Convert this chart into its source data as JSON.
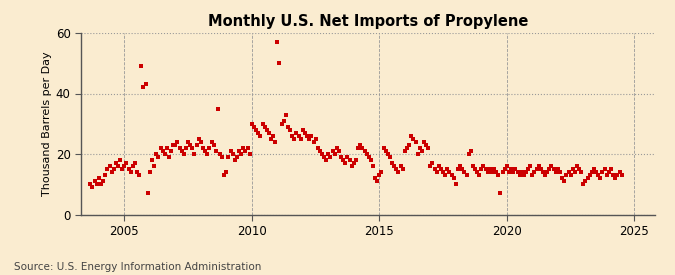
{
  "title": "Monthly U.S. Net Imports of Propylene",
  "ylabel": "Thousand Barrels per Day",
  "source": "Source: U.S. Energy Information Administration",
  "bg_color": "#faecd0",
  "plot_bg_color": "#f5f0e8",
  "dot_color": "#cc0000",
  "ylim": [
    0,
    60
  ],
  "yticks": [
    0,
    20,
    40,
    60
  ],
  "xlim_start": 2003.3,
  "xlim_end": 2025.8,
  "xticks": [
    2005,
    2010,
    2015,
    2020,
    2025
  ],
  "data": [
    [
      2003.67,
      10
    ],
    [
      2003.75,
      9
    ],
    [
      2003.83,
      11
    ],
    [
      2003.92,
      10
    ],
    [
      2004.0,
      12
    ],
    [
      2004.08,
      10
    ],
    [
      2004.17,
      11
    ],
    [
      2004.25,
      13
    ],
    [
      2004.33,
      15
    ],
    [
      2004.42,
      16
    ],
    [
      2004.5,
      14
    ],
    [
      2004.58,
      15
    ],
    [
      2004.67,
      17
    ],
    [
      2004.75,
      16
    ],
    [
      2004.83,
      18
    ],
    [
      2004.92,
      15
    ],
    [
      2005.0,
      16
    ],
    [
      2005.08,
      17
    ],
    [
      2005.17,
      15
    ],
    [
      2005.25,
      14
    ],
    [
      2005.33,
      16
    ],
    [
      2005.42,
      17
    ],
    [
      2005.5,
      14
    ],
    [
      2005.58,
      13
    ],
    [
      2005.67,
      49
    ],
    [
      2005.75,
      42
    ],
    [
      2005.83,
      43
    ],
    [
      2005.92,
      7
    ],
    [
      2006.0,
      14
    ],
    [
      2006.08,
      18
    ],
    [
      2006.17,
      16
    ],
    [
      2006.25,
      20
    ],
    [
      2006.33,
      19
    ],
    [
      2006.42,
      22
    ],
    [
      2006.5,
      21
    ],
    [
      2006.58,
      20
    ],
    [
      2006.67,
      22
    ],
    [
      2006.75,
      19
    ],
    [
      2006.83,
      21
    ],
    [
      2006.92,
      23
    ],
    [
      2007.0,
      23
    ],
    [
      2007.08,
      24
    ],
    [
      2007.17,
      22
    ],
    [
      2007.25,
      21
    ],
    [
      2007.33,
      20
    ],
    [
      2007.42,
      22
    ],
    [
      2007.5,
      24
    ],
    [
      2007.58,
      23
    ],
    [
      2007.67,
      22
    ],
    [
      2007.75,
      20
    ],
    [
      2007.83,
      23
    ],
    [
      2007.92,
      25
    ],
    [
      2008.0,
      24
    ],
    [
      2008.08,
      22
    ],
    [
      2008.17,
      21
    ],
    [
      2008.25,
      20
    ],
    [
      2008.33,
      22
    ],
    [
      2008.42,
      24
    ],
    [
      2008.5,
      23
    ],
    [
      2008.58,
      21
    ],
    [
      2008.67,
      35
    ],
    [
      2008.75,
      20
    ],
    [
      2008.83,
      19
    ],
    [
      2008.92,
      13
    ],
    [
      2009.0,
      14
    ],
    [
      2009.08,
      19
    ],
    [
      2009.17,
      21
    ],
    [
      2009.25,
      20
    ],
    [
      2009.33,
      18
    ],
    [
      2009.42,
      19
    ],
    [
      2009.5,
      21
    ],
    [
      2009.58,
      20
    ],
    [
      2009.67,
      22
    ],
    [
      2009.75,
      21
    ],
    [
      2009.83,
      22
    ],
    [
      2009.92,
      20
    ],
    [
      2010.0,
      30
    ],
    [
      2010.08,
      29
    ],
    [
      2010.17,
      28
    ],
    [
      2010.25,
      27
    ],
    [
      2010.33,
      26
    ],
    [
      2010.42,
      30
    ],
    [
      2010.5,
      29
    ],
    [
      2010.58,
      28
    ],
    [
      2010.67,
      27
    ],
    [
      2010.75,
      25
    ],
    [
      2010.83,
      26
    ],
    [
      2010.92,
      24
    ],
    [
      2011.0,
      57
    ],
    [
      2011.08,
      50
    ],
    [
      2011.17,
      30
    ],
    [
      2011.25,
      31
    ],
    [
      2011.33,
      33
    ],
    [
      2011.42,
      29
    ],
    [
      2011.5,
      28
    ],
    [
      2011.58,
      26
    ],
    [
      2011.67,
      25
    ],
    [
      2011.75,
      27
    ],
    [
      2011.83,
      26
    ],
    [
      2011.92,
      25
    ],
    [
      2012.0,
      28
    ],
    [
      2012.08,
      27
    ],
    [
      2012.17,
      26
    ],
    [
      2012.25,
      25
    ],
    [
      2012.33,
      26
    ],
    [
      2012.42,
      24
    ],
    [
      2012.5,
      25
    ],
    [
      2012.58,
      22
    ],
    [
      2012.67,
      21
    ],
    [
      2012.75,
      20
    ],
    [
      2012.83,
      19
    ],
    [
      2012.92,
      18
    ],
    [
      2013.0,
      20
    ],
    [
      2013.08,
      19
    ],
    [
      2013.17,
      21
    ],
    [
      2013.25,
      20
    ],
    [
      2013.33,
      22
    ],
    [
      2013.42,
      21
    ],
    [
      2013.5,
      19
    ],
    [
      2013.58,
      18
    ],
    [
      2013.67,
      17
    ],
    [
      2013.75,
      19
    ],
    [
      2013.83,
      18
    ],
    [
      2013.92,
      16
    ],
    [
      2014.0,
      17
    ],
    [
      2014.08,
      18
    ],
    [
      2014.17,
      22
    ],
    [
      2014.25,
      23
    ],
    [
      2014.33,
      22
    ],
    [
      2014.42,
      21
    ],
    [
      2014.5,
      20
    ],
    [
      2014.58,
      19
    ],
    [
      2014.67,
      18
    ],
    [
      2014.75,
      16
    ],
    [
      2014.83,
      12
    ],
    [
      2014.92,
      11
    ],
    [
      2015.0,
      13
    ],
    [
      2015.08,
      14
    ],
    [
      2015.17,
      22
    ],
    [
      2015.25,
      21
    ],
    [
      2015.33,
      20
    ],
    [
      2015.42,
      19
    ],
    [
      2015.5,
      17
    ],
    [
      2015.58,
      16
    ],
    [
      2015.67,
      15
    ],
    [
      2015.75,
      14
    ],
    [
      2015.83,
      16
    ],
    [
      2015.92,
      15
    ],
    [
      2016.0,
      21
    ],
    [
      2016.08,
      22
    ],
    [
      2016.17,
      23
    ],
    [
      2016.25,
      26
    ],
    [
      2016.33,
      25
    ],
    [
      2016.42,
      24
    ],
    [
      2016.5,
      20
    ],
    [
      2016.58,
      22
    ],
    [
      2016.67,
      21
    ],
    [
      2016.75,
      24
    ],
    [
      2016.83,
      23
    ],
    [
      2016.92,
      22
    ],
    [
      2017.0,
      16
    ],
    [
      2017.08,
      17
    ],
    [
      2017.17,
      15
    ],
    [
      2017.25,
      14
    ],
    [
      2017.33,
      16
    ],
    [
      2017.42,
      15
    ],
    [
      2017.5,
      14
    ],
    [
      2017.58,
      13
    ],
    [
      2017.67,
      15
    ],
    [
      2017.75,
      14
    ],
    [
      2017.83,
      13
    ],
    [
      2017.92,
      12
    ],
    [
      2018.0,
      10
    ],
    [
      2018.08,
      15
    ],
    [
      2018.17,
      16
    ],
    [
      2018.25,
      15
    ],
    [
      2018.33,
      14
    ],
    [
      2018.42,
      13
    ],
    [
      2018.5,
      20
    ],
    [
      2018.58,
      21
    ],
    [
      2018.67,
      16
    ],
    [
      2018.75,
      15
    ],
    [
      2018.83,
      14
    ],
    [
      2018.92,
      13
    ],
    [
      2019.0,
      15
    ],
    [
      2019.08,
      16
    ],
    [
      2019.17,
      15
    ],
    [
      2019.25,
      14
    ],
    [
      2019.33,
      15
    ],
    [
      2019.42,
      14
    ],
    [
      2019.5,
      15
    ],
    [
      2019.58,
      14
    ],
    [
      2019.67,
      13
    ],
    [
      2019.75,
      7
    ],
    [
      2019.83,
      14
    ],
    [
      2019.92,
      15
    ],
    [
      2020.0,
      16
    ],
    [
      2020.08,
      14
    ],
    [
      2020.17,
      15
    ],
    [
      2020.25,
      14
    ],
    [
      2020.33,
      15
    ],
    [
      2020.42,
      14
    ],
    [
      2020.5,
      13
    ],
    [
      2020.58,
      14
    ],
    [
      2020.67,
      13
    ],
    [
      2020.75,
      14
    ],
    [
      2020.83,
      15
    ],
    [
      2020.92,
      16
    ],
    [
      2021.0,
      13
    ],
    [
      2021.08,
      14
    ],
    [
      2021.17,
      15
    ],
    [
      2021.25,
      16
    ],
    [
      2021.33,
      15
    ],
    [
      2021.42,
      14
    ],
    [
      2021.5,
      13
    ],
    [
      2021.58,
      14
    ],
    [
      2021.67,
      15
    ],
    [
      2021.75,
      16
    ],
    [
      2021.83,
      15
    ],
    [
      2021.92,
      14
    ],
    [
      2022.0,
      15
    ],
    [
      2022.08,
      14
    ],
    [
      2022.17,
      12
    ],
    [
      2022.25,
      11
    ],
    [
      2022.33,
      13
    ],
    [
      2022.42,
      14
    ],
    [
      2022.5,
      13
    ],
    [
      2022.58,
      15
    ],
    [
      2022.67,
      14
    ],
    [
      2022.75,
      16
    ],
    [
      2022.83,
      15
    ],
    [
      2022.92,
      14
    ],
    [
      2023.0,
      10
    ],
    [
      2023.08,
      11
    ],
    [
      2023.17,
      12
    ],
    [
      2023.25,
      13
    ],
    [
      2023.33,
      14
    ],
    [
      2023.42,
      15
    ],
    [
      2023.5,
      14
    ],
    [
      2023.58,
      13
    ],
    [
      2023.67,
      12
    ],
    [
      2023.75,
      14
    ],
    [
      2023.83,
      15
    ],
    [
      2023.92,
      13
    ],
    [
      2024.0,
      14
    ],
    [
      2024.08,
      15
    ],
    [
      2024.17,
      13
    ],
    [
      2024.25,
      12
    ],
    [
      2024.33,
      13
    ],
    [
      2024.42,
      14
    ],
    [
      2024.5,
      13
    ]
  ]
}
